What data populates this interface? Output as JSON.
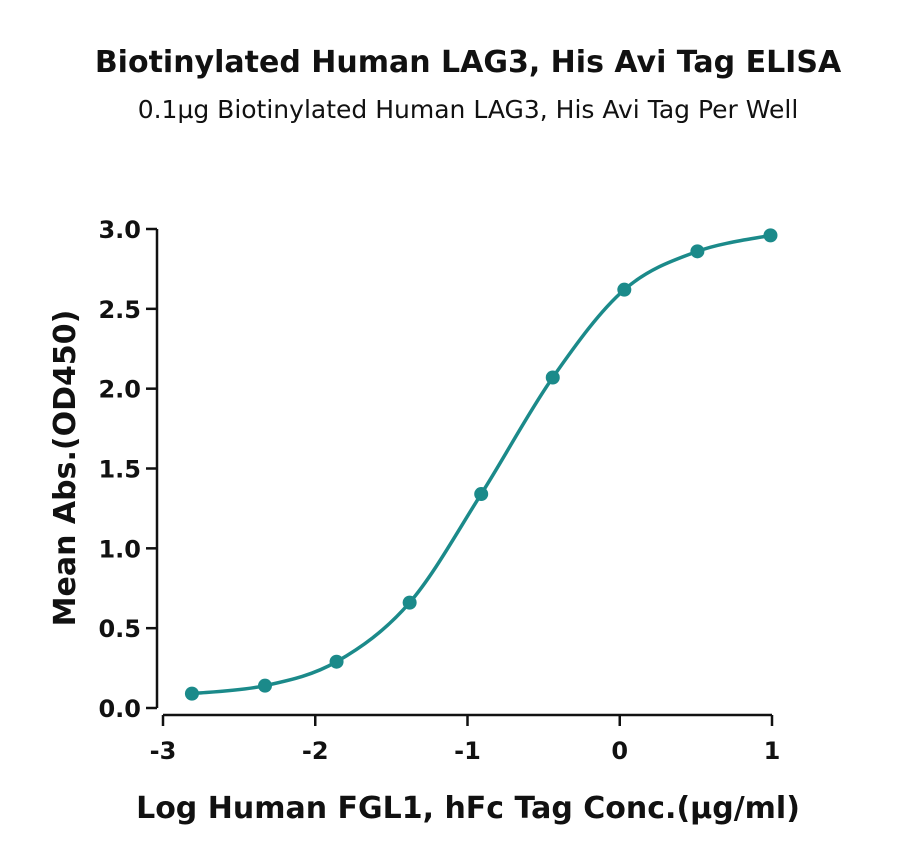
{
  "chart_data": {
    "type": "scatter",
    "title": "Biotinylated Human LAG3, His Avi Tag ELISA",
    "subtitle": "0.1µg Biotinylated Human LAG3, His Avi Tag Per Well",
    "xlabel": "Log Human FGL1, hFc Tag Conc.(µg/ml)",
    "ylabel": "Mean Abs.(OD450)",
    "xlim": [
      -3,
      1
    ],
    "ylim": [
      0,
      3
    ],
    "x_ticks": [
      "-3",
      "-2",
      "-1",
      "0",
      "1"
    ],
    "y_ticks": [
      "0.0",
      "0.5",
      "1.0",
      "1.5",
      "2.0",
      "2.5",
      "3.0"
    ],
    "grid": false,
    "fit": "sigmoidal 4PL",
    "series": [
      {
        "x": [
          -2.81,
          -2.33,
          -1.86,
          -1.38,
          -0.91,
          -0.44,
          0.03,
          0.51,
          0.99
        ],
        "y": [
          0.09,
          0.14,
          0.29,
          0.66,
          1.34,
          2.07,
          2.62,
          2.86,
          2.96
        ]
      }
    ],
    "colors": {
      "series": "#1b8a8a",
      "axis": "#111111"
    }
  }
}
